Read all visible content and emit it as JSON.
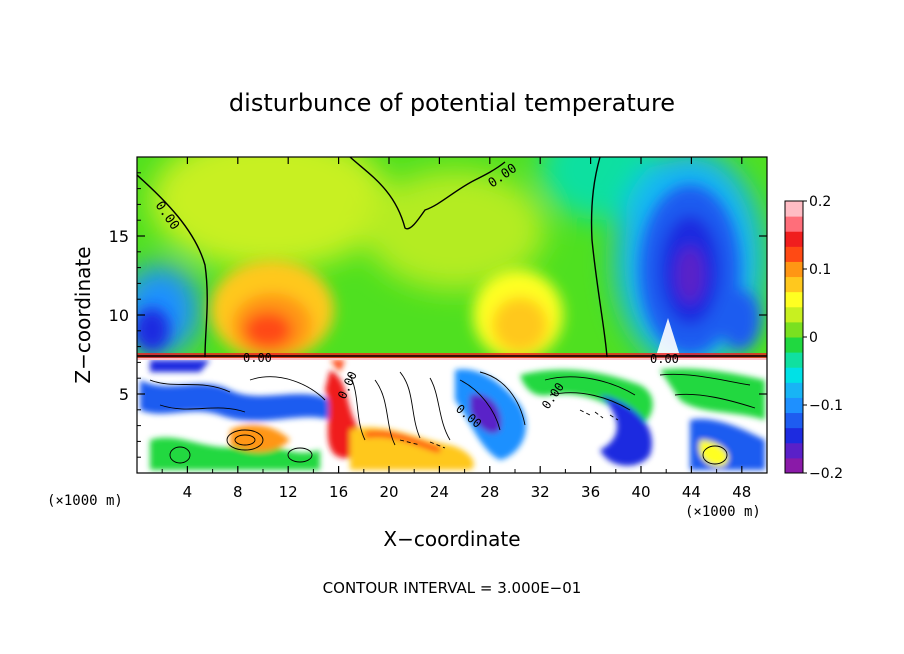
{
  "chart_data": {
    "type": "heatmap",
    "title": "disturbunce of potential temperature",
    "xlabel": "X−coordinate",
    "ylabel": "Z−coordinate",
    "x_unit_left": "(×1000 m)",
    "x_unit_right": "(×1000 m)",
    "footer": "CONTOUR INTERVAL = 3.000E−01",
    "xlim": [
      0,
      50
    ],
    "ylim": [
      0,
      20
    ],
    "x_ticks": [
      4,
      8,
      12,
      16,
      20,
      24,
      28,
      32,
      36,
      40,
      44,
      48
    ],
    "x_tick_labels": [
      "4",
      "8",
      "12",
      "16",
      "20",
      "24",
      "28",
      "32",
      "36",
      "40",
      "44",
      "48"
    ],
    "y_ticks": [
      5,
      10,
      15
    ],
    "y_tick_labels": [
      "5",
      "10",
      "15"
    ],
    "colorbar": {
      "min": -0.2,
      "max": 0.2,
      "ticks": [
        0.2,
        0.1,
        0,
        -0.1,
        -0.2
      ],
      "tick_labels": [
        "0.2",
        "0.1",
        "0",
        "−0.1",
        "−0.2"
      ],
      "colors": [
        "#8a1aa8",
        "#5a20c8",
        "#1d2be0",
        "#1e5cf0",
        "#1e90ff",
        "#18b4f5",
        "#00e1e6",
        "#10e0a0",
        "#20d840",
        "#7ae020",
        "#c8f020",
        "#ffff22",
        "#ffc81e",
        "#ff9614",
        "#ff4a14",
        "#f01e1e",
        "#ff6e7a",
        "#ffbcc4"
      ]
    },
    "contour_labels": [
      "0.00",
      "0.00",
      "0.00",
      "0.00",
      "0.00",
      "0.00",
      "0.00"
    ],
    "field_description": [
      {
        "region": "upper layer z 7.3-20",
        "pattern": "near-zero green with warm yellow/orange/red plumes near x=10 and x=27, cold blue/purple lobe near x=42 and at left edge"
      },
      {
        "region": "lower layer z 0-7.3",
        "pattern": "turbulent mixed strong positive and negative anomalies with dense black contours"
      }
    ]
  }
}
